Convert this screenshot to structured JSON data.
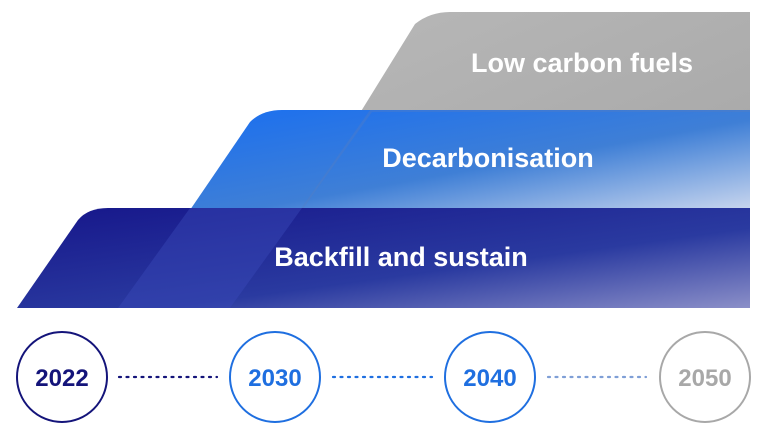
{
  "bands": [
    {
      "id": "low-carbon-fuels",
      "label": "Low carbon fuels",
      "color": "#b4b4b4"
    },
    {
      "id": "decarbonisation",
      "label": "Decarbonisation",
      "color": "#1f6fe0"
    },
    {
      "id": "backfill-and-sustain",
      "label": "Backfill and sustain",
      "color": "#1c1c8e"
    }
  ],
  "timeline": {
    "milestones": [
      {
        "year": "2022",
        "color": "#14147a"
      },
      {
        "year": "2030",
        "color": "#1f6fe0"
      },
      {
        "year": "2040",
        "color": "#1f6fe0"
      },
      {
        "year": "2050",
        "color": "#a8a8a8"
      }
    ]
  }
}
